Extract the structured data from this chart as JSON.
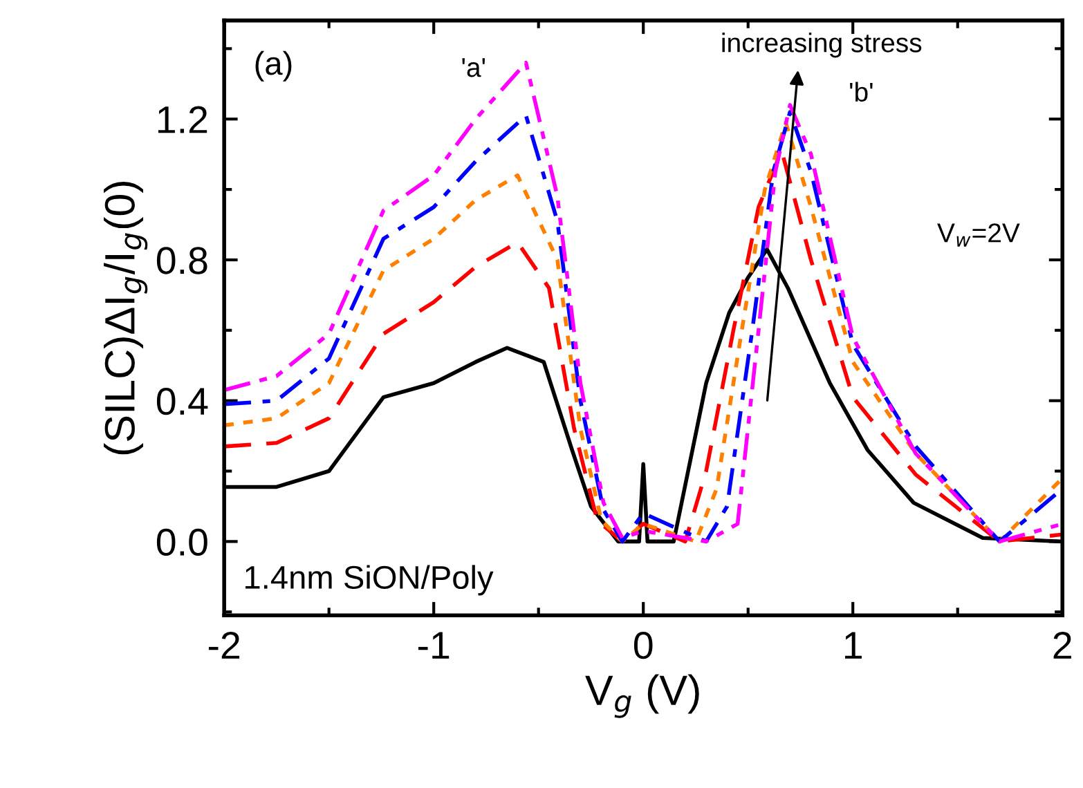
{
  "chart_data": {
    "type": "line",
    "xlabel": "V$_{g}$ (V)",
    "ylabel": "(SILC)ΔI$_{g}$/I$_{g}$(0)",
    "xlim": [
      -2,
      2
    ],
    "xticks": [
      -2,
      -1,
      0,
      1,
      2
    ],
    "ylim": [
      -0.21,
      1.48
    ],
    "yticks": [
      {
        "value": 0,
        "label": "0.0"
      },
      {
        "value": 0.4,
        "label": "0.4"
      },
      {
        "value": 0.8,
        "label": "0.8"
      },
      {
        "value": 1.2,
        "label": "1.2"
      }
    ],
    "grid": false,
    "legend": false,
    "marker": "none",
    "annotations": [
      "(a)",
      "'a'",
      "increasing stress",
      "'b'",
      "V$_{w}$=2V",
      "1.4nm SiON/Poly"
    ],
    "series": [
      {
        "color": "#000000",
        "line_style": "solid",
        "x": [
          -2,
          -1.75,
          -1.5,
          -1.24,
          -1.0,
          -0.8,
          -0.65,
          -0.475,
          -0.34,
          -0.25,
          -0.12,
          -0.02,
          0,
          0.02,
          0.145,
          0.3,
          0.41,
          0.5,
          0.59,
          0.69,
          0.89,
          1.07,
          1.29,
          1.62,
          2
        ],
        "values": [
          0.155,
          0.155,
          0.2,
          0.41,
          0.45,
          0.51,
          0.55,
          0.51,
          0.26,
          0.1,
          0,
          0,
          0.22,
          0,
          0,
          0.45,
          0.65,
          0.75,
          0.83,
          0.72,
          0.45,
          0.26,
          0.11,
          0.01,
          0
        ]
      },
      {
        "color": "#ff0000",
        "line_style": "dashed",
        "x": [
          -2,
          -1.75,
          -1.5,
          -1.24,
          -1.0,
          -0.8,
          -0.6,
          -0.45,
          -0.33,
          -0.22,
          -0.1,
          0,
          0.2,
          0.3,
          0.43,
          0.55,
          0.66,
          0.8,
          1.0,
          1.3,
          1.7,
          2
        ],
        "values": [
          0.27,
          0.28,
          0.35,
          0.59,
          0.68,
          0.78,
          0.85,
          0.72,
          0.32,
          0.06,
          0,
          0.05,
          0,
          0.2,
          0.6,
          0.95,
          1.11,
          0.8,
          0.41,
          0.19,
          0,
          0.02
        ]
      },
      {
        "color": "#ff8000",
        "line_style": "dotted",
        "x": [
          -2,
          -1.75,
          -1.5,
          -1.24,
          -1.0,
          -0.8,
          -0.6,
          -0.41,
          -0.3,
          -0.2,
          -0.1,
          0,
          0.25,
          0.35,
          0.47,
          0.58,
          0.68,
          0.8,
          1.0,
          1.3,
          1.7,
          2
        ],
        "values": [
          0.33,
          0.35,
          0.45,
          0.77,
          0.86,
          0.97,
          1.04,
          0.8,
          0.32,
          0.06,
          0,
          0.05,
          0,
          0.15,
          0.6,
          1.0,
          1.19,
          0.95,
          0.51,
          0.25,
          0,
          0.18
        ]
      },
      {
        "color": "#0000ff",
        "line_style": "dashdot",
        "x": [
          -2,
          -1.75,
          -1.5,
          -1.24,
          -1.0,
          -0.8,
          -0.56,
          -0.41,
          -0.3,
          -0.19,
          -0.1,
          0,
          0.3,
          0.4,
          0.52,
          0.62,
          0.7,
          0.8,
          1.0,
          1.3,
          1.7,
          2
        ],
        "values": [
          0.39,
          0.4,
          0.52,
          0.86,
          0.95,
          1.08,
          1.21,
          0.91,
          0.4,
          0.09,
          0,
          0.08,
          0,
          0.1,
          0.6,
          1.05,
          1.22,
          1.05,
          0.56,
          0.27,
          0,
          0.15
        ]
      },
      {
        "color": "#ff00ff",
        "line_style": "dashdotdot",
        "x": [
          -2,
          -1.75,
          -1.5,
          -1.24,
          -1.0,
          -0.8,
          -0.56,
          -0.41,
          -0.3,
          -0.19,
          -0.1,
          0,
          0.3,
          0.45,
          0.55,
          0.63,
          0.7,
          0.8,
          1.0,
          1.3,
          1.7,
          2
        ],
        "values": [
          0.43,
          0.47,
          0.59,
          0.94,
          1.04,
          1.2,
          1.36,
          0.98,
          0.45,
          0.11,
          0.01,
          0.03,
          0,
          0.05,
          0.6,
          1.05,
          1.24,
          1.1,
          0.58,
          0.25,
          0,
          0.05
        ]
      }
    ]
  }
}
